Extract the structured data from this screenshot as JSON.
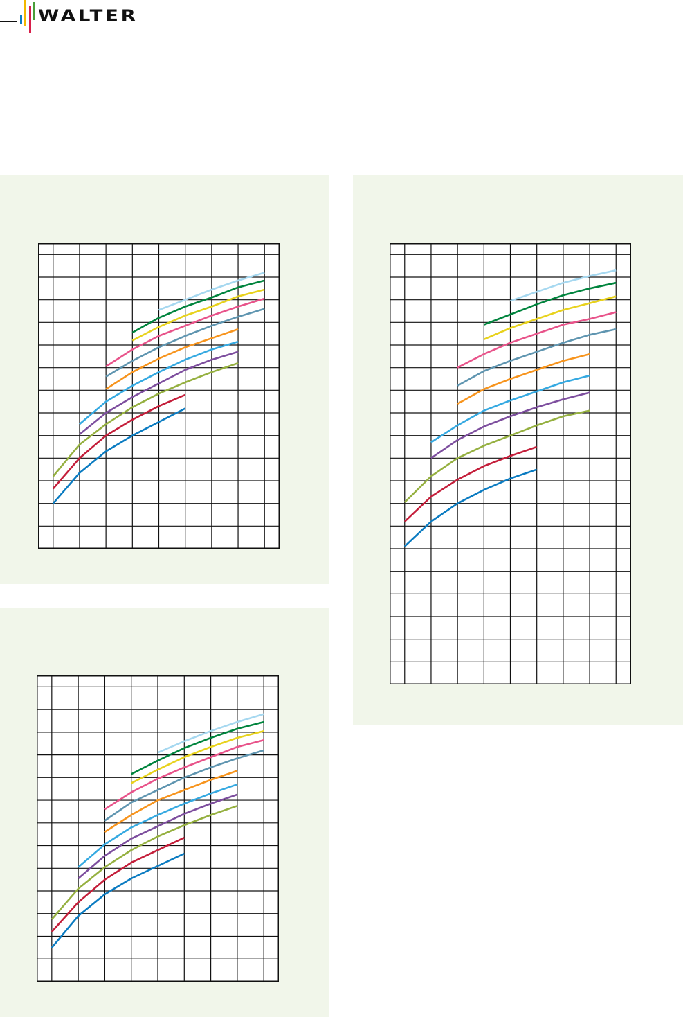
{
  "header": {
    "logo_text": "WALTER",
    "logo_colors": {
      "line": "#111111",
      "blue": "#0a7bc1",
      "yellow": "#f2b800",
      "red": "#d81e4a",
      "green": "#4a9e3a"
    }
  },
  "panel_color": "#f1f6ea",
  "series_colors": [
    "#0a7bc1",
    "#c41e3a",
    "#95b040",
    "#7d4e9e",
    "#35a9e1",
    "#f7941d",
    "#5f95b0",
    "#e8538a",
    "#e8d21d",
    "#00843d",
    "#a6d8f0"
  ],
  "chart_data": [
    {
      "type": "line",
      "title": "",
      "xlabel": "",
      "ylabel": "",
      "grid": true,
      "xlim": [
        -0.57,
        8.57
      ],
      "ylim": [
        0,
        13.5
      ],
      "series": [
        {
          "x0": 0,
          "values": [
            2.0,
            3.35,
            4.3,
            5.0,
            5.6,
            6.2
          ]
        },
        {
          "x0": 0,
          "values": [
            2.65,
            4.0,
            5.0,
            5.7,
            6.3,
            6.8
          ]
        },
        {
          "x0": 0,
          "values": [
            3.2,
            4.6,
            5.5,
            6.25,
            6.85,
            7.35,
            7.8,
            8.2
          ]
        },
        {
          "x0": 1,
          "values": [
            5.05,
            6.0,
            6.7,
            7.3,
            7.9,
            8.35,
            8.7
          ]
        },
        {
          "x0": 1,
          "values": [
            5.5,
            6.5,
            7.2,
            7.8,
            8.35,
            8.8,
            9.15
          ]
        },
        {
          "x0": 2,
          "values": [
            7.05,
            7.8,
            8.4,
            8.9,
            9.3,
            9.7
          ]
        },
        {
          "x0": 2,
          "values": [
            7.6,
            8.3,
            8.9,
            9.4,
            9.85,
            10.25,
            10.6
          ]
        },
        {
          "x0": 2,
          "values": [
            8.05,
            8.8,
            9.4,
            9.85,
            10.3,
            10.7,
            11.05
          ]
        },
        {
          "x0": 3,
          "values": [
            9.2,
            9.8,
            10.3,
            10.7,
            11.15,
            11.45
          ]
        },
        {
          "x0": 3,
          "values": [
            9.55,
            10.2,
            10.7,
            11.1,
            11.55,
            11.85
          ]
        },
        {
          "x0": 4,
          "values": [
            10.55,
            11.0,
            11.45,
            11.85,
            12.2
          ]
        }
      ]
    },
    {
      "type": "line",
      "title": "",
      "xlabel": "",
      "ylabel": "",
      "grid": true,
      "xlim": [
        -0.57,
        8.57
      ],
      "ylim": [
        0,
        13.5
      ],
      "series": [
        {
          "x0": 0,
          "values": [
            1.5,
            2.9,
            3.85,
            4.55,
            5.1,
            5.65
          ]
        },
        {
          "x0": 0,
          "values": [
            2.2,
            3.5,
            4.5,
            5.25,
            5.8,
            6.35
          ]
        },
        {
          "x0": 0,
          "values": [
            2.75,
            4.1,
            5.05,
            5.8,
            6.4,
            6.9,
            7.35,
            7.75
          ]
        },
        {
          "x0": 1,
          "values": [
            4.55,
            5.55,
            6.3,
            6.85,
            7.4,
            7.85,
            8.25
          ]
        },
        {
          "x0": 1,
          "values": [
            5.05,
            6.05,
            6.8,
            7.35,
            7.85,
            8.3,
            8.7
          ]
        },
        {
          "x0": 2,
          "values": [
            6.6,
            7.35,
            8.0,
            8.45,
            8.9,
            9.3
          ]
        },
        {
          "x0": 2,
          "values": [
            7.1,
            7.9,
            8.45,
            9.0,
            9.45,
            9.85,
            10.2
          ]
        },
        {
          "x0": 2,
          "values": [
            7.6,
            8.35,
            8.95,
            9.45,
            9.9,
            10.35,
            10.65
          ]
        },
        {
          "x0": 3,
          "values": [
            8.75,
            9.35,
            9.9,
            10.35,
            10.75,
            11.05
          ]
        },
        {
          "x0": 3,
          "values": [
            9.15,
            9.75,
            10.3,
            10.75,
            11.15,
            11.45
          ]
        },
        {
          "x0": 4,
          "values": [
            10.1,
            10.6,
            11.05,
            11.45,
            11.8
          ]
        }
      ]
    },
    {
      "type": "line",
      "title": "",
      "xlabel": "",
      "ylabel": "",
      "grid": true,
      "xlim": [
        -0.57,
        8.57
      ],
      "ylim": [
        0,
        19.5
      ],
      "series": [
        {
          "x0": 0,
          "values": [
            6.1,
            7.2,
            8.0,
            8.6,
            9.1,
            9.5
          ]
        },
        {
          "x0": 0,
          "values": [
            7.2,
            8.3,
            9.05,
            9.65,
            10.1,
            10.5
          ]
        },
        {
          "x0": 0,
          "values": [
            8.05,
            9.2,
            10.0,
            10.55,
            11.0,
            11.45,
            11.85,
            12.1
          ]
        },
        {
          "x0": 1,
          "values": [
            10.0,
            10.8,
            11.4,
            11.85,
            12.25,
            12.6,
            12.9
          ]
        },
        {
          "x0": 1,
          "values": [
            10.7,
            11.45,
            12.1,
            12.55,
            12.95,
            13.35,
            13.65
          ]
        },
        {
          "x0": 2,
          "values": [
            12.4,
            13.05,
            13.5,
            13.9,
            14.3,
            14.6
          ]
        },
        {
          "x0": 2,
          "values": [
            13.2,
            13.85,
            14.3,
            14.7,
            15.1,
            15.45,
            15.7
          ]
        },
        {
          "x0": 2,
          "values": [
            14.0,
            14.6,
            15.1,
            15.5,
            15.9,
            16.15,
            16.45
          ]
        },
        {
          "x0": 3,
          "values": [
            15.25,
            15.75,
            16.15,
            16.55,
            16.85,
            17.15
          ]
        },
        {
          "x0": 3,
          "values": [
            15.9,
            16.35,
            16.8,
            17.2,
            17.5,
            17.75
          ]
        },
        {
          "x0": 4,
          "values": [
            16.95,
            17.35,
            17.75,
            18.05,
            18.3
          ]
        }
      ]
    }
  ]
}
